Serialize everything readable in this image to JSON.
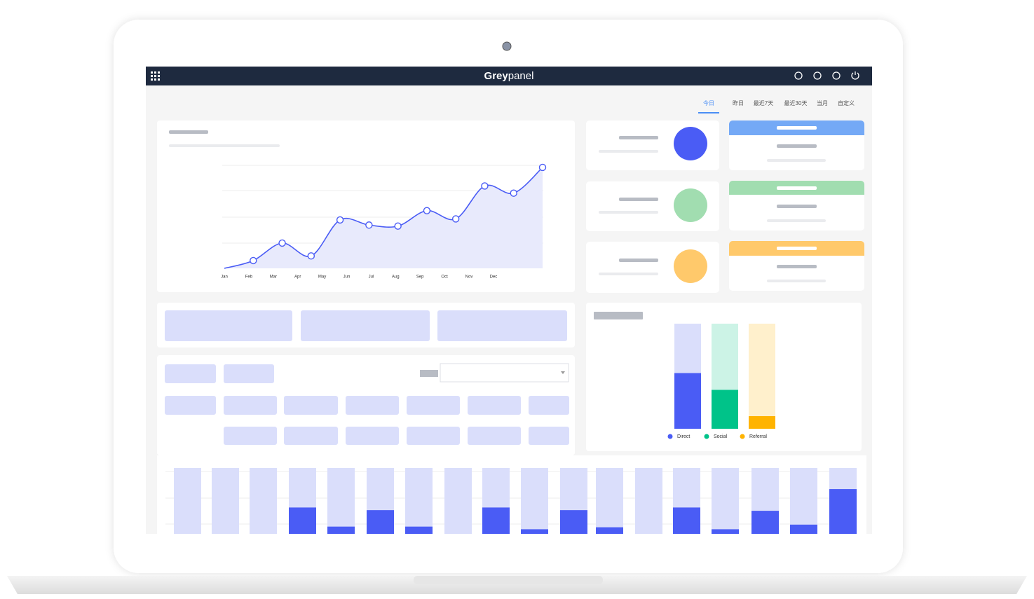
{
  "brand": {
    "first": "Grey",
    "second": "panel"
  },
  "tabs": [
    "今日",
    "昨日",
    "最近7天",
    "最近30天",
    "当月",
    "自定义"
  ],
  "chart_data": [
    {
      "type": "line",
      "categories": [
        "Jan",
        "Feb",
        "Mar",
        "Apr",
        "May",
        "Jun",
        "Jul",
        "Aug",
        "Sep",
        "Oct",
        "Nov",
        "Dec"
      ],
      "values": [
        0,
        7.5,
        24.5,
        12,
        47,
        42,
        41,
        56,
        48,
        80,
        73,
        98
      ],
      "color": "#4a5cf5",
      "ylim": [
        0,
        100
      ]
    },
    {
      "type": "bar",
      "categories": [
        "Direct",
        "Social",
        "Referral"
      ],
      "values": [
        53,
        37,
        12
      ],
      "colors": [
        "#4a5cf5",
        "#00c389",
        "#ffb300"
      ],
      "ylim": [
        0,
        100
      ]
    },
    {
      "type": "bar",
      "values": [
        0,
        0,
        0,
        40,
        11,
        36,
        11,
        0,
        40,
        7,
        36,
        10,
        0,
        40,
        7,
        35,
        14,
        68
      ],
      "color": "#4a5cf5",
      "ylim": [
        0,
        100
      ]
    }
  ]
}
